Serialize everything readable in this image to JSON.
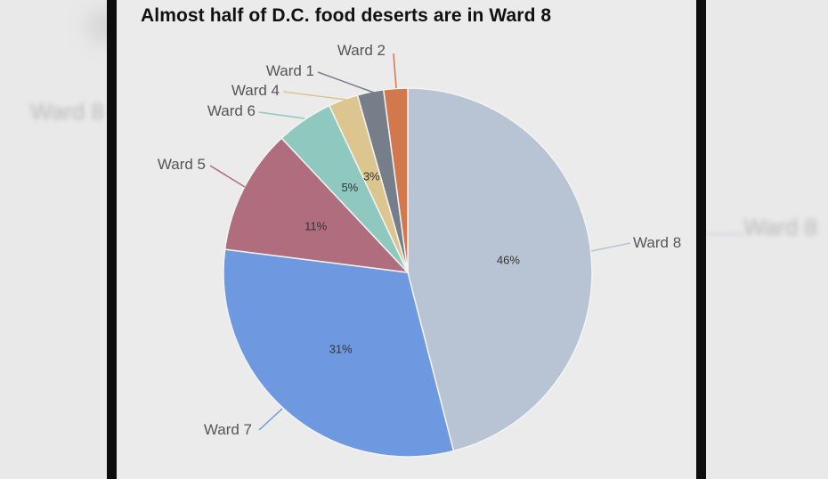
{
  "chart_data": {
    "type": "pie",
    "title": "Almost half of D.C. food deserts are in Ward 8",
    "slices": [
      {
        "label": "Ward 8",
        "value": 46,
        "display": "46%",
        "color": "#b8c4d3"
      },
      {
        "label": "Ward 7",
        "value": 31,
        "display": "31%",
        "color": "#6e99e0"
      },
      {
        "label": "Ward 5",
        "value": 11,
        "display": "11%",
        "color": "#b06d7e"
      },
      {
        "label": "Ward 6",
        "value": 5,
        "display": "5%",
        "color": "#8ec8be"
      },
      {
        "label": "Ward 4",
        "value": 2.6,
        "display": "3%",
        "color": "#dcc58f"
      },
      {
        "label": "Ward 1",
        "value": 2.3,
        "display": "",
        "color": "#767e8a"
      },
      {
        "label": "Ward 2",
        "value": 2.1,
        "display": "",
        "color": "#d3784c"
      }
    ]
  }
}
